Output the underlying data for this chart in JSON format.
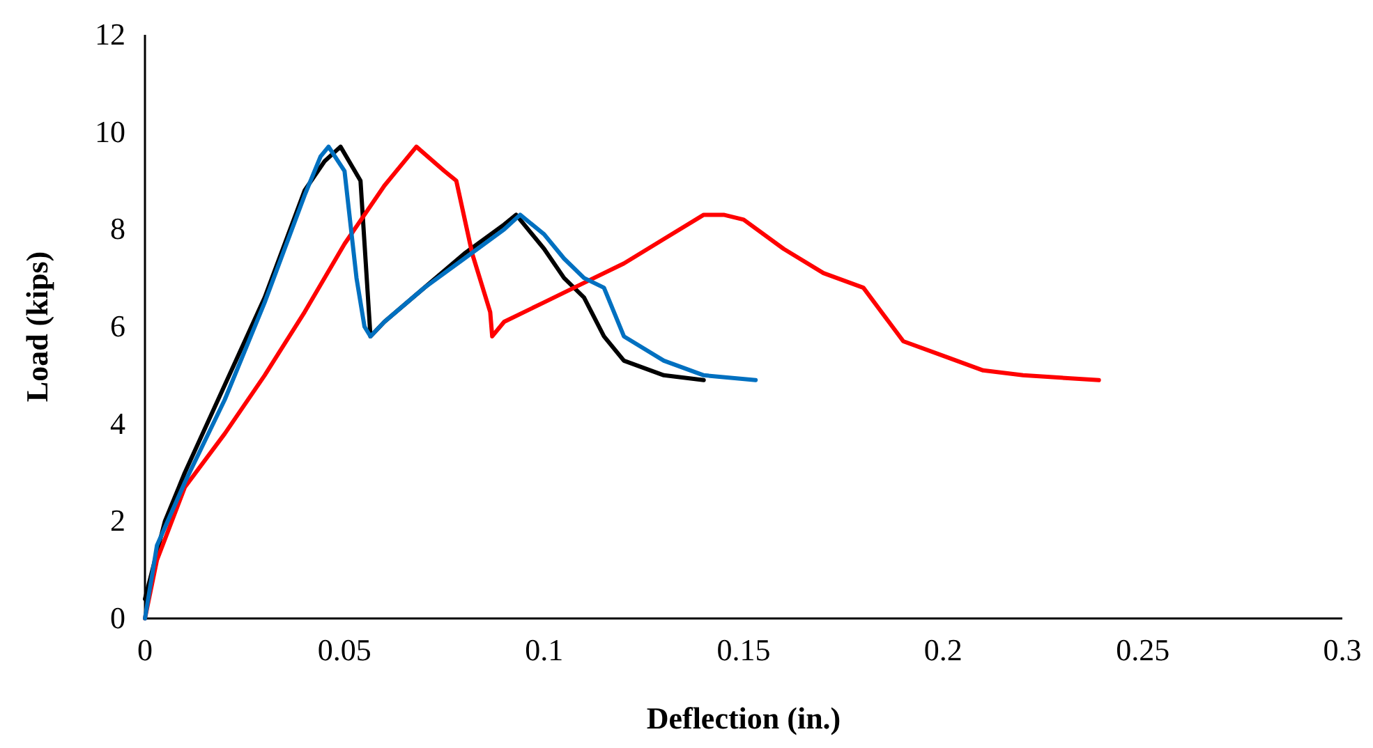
{
  "chart_data": {
    "type": "line",
    "xlabel": "Deflection (in.)",
    "ylabel": "Load (kips)",
    "xlim": [
      0,
      0.3
    ],
    "xticks": [
      0,
      0.05,
      0.1,
      0.15,
      0.2,
      0.25,
      0.3
    ],
    "ylim": [
      0,
      12
    ],
    "yticks": [
      0,
      2,
      4,
      6,
      8,
      10,
      12
    ],
    "grid": false,
    "marker": "none",
    "line_style": "solid",
    "series": [
      {
        "color": "#000000",
        "x": [
          0,
          0.005,
          0.01,
          0.02,
          0.03,
          0.035,
          0.04,
          0.045,
          0.049,
          0.054,
          0.0565,
          0.06,
          0.07,
          0.08,
          0.09,
          0.093,
          0.1,
          0.105,
          0.11,
          0.115,
          0.12,
          0.13,
          0.14
        ],
        "values": [
          0.4,
          2.0,
          3.0,
          4.8,
          6.6,
          7.7,
          8.8,
          9.4,
          9.7,
          9.0,
          5.8,
          6.1,
          6.8,
          7.5,
          8.1,
          8.3,
          7.6,
          7.0,
          6.6,
          5.8,
          5.3,
          5.0,
          4.9
        ]
      },
      {
        "color": "#ff0000",
        "x": [
          0,
          0.003,
          0.01,
          0.02,
          0.03,
          0.04,
          0.05,
          0.06,
          0.068,
          0.075,
          0.078,
          0.082,
          0.0865,
          0.087,
          0.09,
          0.1,
          0.11,
          0.12,
          0.13,
          0.14,
          0.145,
          0.15,
          0.16,
          0.17,
          0.18,
          0.19,
          0.2,
          0.21,
          0.22,
          0.239
        ],
        "values": [
          0,
          1.2,
          2.7,
          3.8,
          5.0,
          6.3,
          7.7,
          8.9,
          9.7,
          9.2,
          9.0,
          7.5,
          6.3,
          5.8,
          6.1,
          6.5,
          6.9,
          7.3,
          7.8,
          8.3,
          8.3,
          8.2,
          7.6,
          7.1,
          6.8,
          5.7,
          5.4,
          5.1,
          5.0,
          4.9
        ]
      },
      {
        "color": "#0070c0",
        "x": [
          0,
          0.003,
          0.01,
          0.02,
          0.03,
          0.035,
          0.04,
          0.044,
          0.046,
          0.05,
          0.053,
          0.055,
          0.0565,
          0.06,
          0.07,
          0.08,
          0.09,
          0.094,
          0.1,
          0.105,
          0.11,
          0.115,
          0.12,
          0.13,
          0.14,
          0.153
        ],
        "values": [
          0,
          1.5,
          2.8,
          4.5,
          6.5,
          7.6,
          8.7,
          9.5,
          9.7,
          9.2,
          7.0,
          6.0,
          5.8,
          6.1,
          6.8,
          7.4,
          8.0,
          8.3,
          7.9,
          7.4,
          7.0,
          6.8,
          5.8,
          5.3,
          5.0,
          4.9
        ]
      }
    ]
  }
}
